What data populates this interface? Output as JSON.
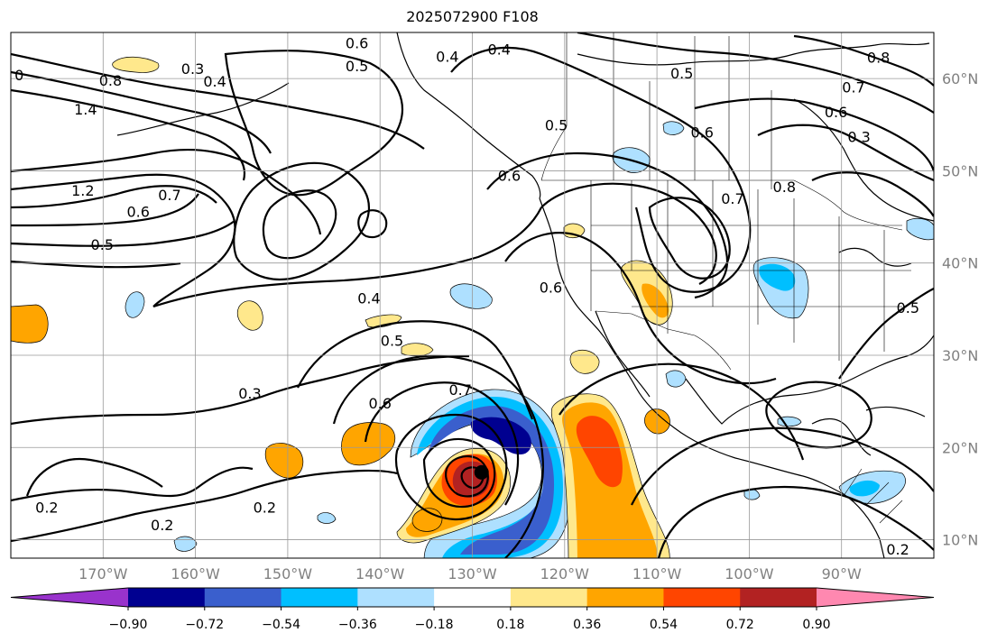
{
  "title": "2025072900 F108",
  "map": {
    "lon_range": [
      -180,
      -80
    ],
    "lat_range": [
      8,
      65
    ],
    "gridlines": true,
    "x_ticks": [
      {
        "lon": -170,
        "label": "170°W"
      },
      {
        "lon": -160,
        "label": "160°W"
      },
      {
        "lon": -150,
        "label": "150°W"
      },
      {
        "lon": -140,
        "label": "140°W"
      },
      {
        "lon": -130,
        "label": "130°W"
      },
      {
        "lon": -120,
        "label": "120°W"
      },
      {
        "lon": -110,
        "label": "110°W"
      },
      {
        "lon": -100,
        "label": "100°W"
      },
      {
        "lon": -90,
        "label": "90°W"
      }
    ],
    "y_ticks": [
      {
        "lat": 60,
        "label": "60°N"
      },
      {
        "lat": 50,
        "label": "50°N"
      },
      {
        "lat": 40,
        "label": "40°N"
      },
      {
        "lat": 30,
        "label": "30°N"
      },
      {
        "lat": 20,
        "label": "20°N"
      },
      {
        "lat": 10,
        "label": "10°N"
      }
    ],
    "contour_labels": [
      {
        "text": "0.6",
        "lon": -142.5,
        "lat": 63.9
      },
      {
        "text": "0.5",
        "lon": -142.5,
        "lat": 61.4
      },
      {
        "text": "0.4",
        "lon": -132.7,
        "lat": 62.4
      },
      {
        "text": "0.3",
        "lon": -160.3,
        "lat": 61.1
      },
      {
        "text": "0.4",
        "lon": -157.9,
        "lat": 59.7
      },
      {
        "text": "0.8",
        "lon": -169.2,
        "lat": 59.8
      },
      {
        "text": "0",
        "lon": -179.1,
        "lat": 60.4
      },
      {
        "text": "1.4",
        "lon": -171.9,
        "lat": 56.7
      },
      {
        "text": "1.2",
        "lon": -172.2,
        "lat": 47.9
      },
      {
        "text": "0.7",
        "lon": -162.8,
        "lat": 47.4
      },
      {
        "text": "0.6",
        "lon": -166.2,
        "lat": 45.6
      },
      {
        "text": "0.5",
        "lon": -170.1,
        "lat": 42.0
      },
      {
        "text": "0.4",
        "lon": -141.2,
        "lat": 36.2
      },
      {
        "text": "0.5",
        "lon": -138.7,
        "lat": 31.6
      },
      {
        "text": "0.7",
        "lon": -131.3,
        "lat": 26.3
      },
      {
        "text": "0.6",
        "lon": -140.0,
        "lat": 24.8
      },
      {
        "text": "0.3",
        "lon": -154.1,
        "lat": 25.9
      },
      {
        "text": "0.2",
        "lon": -176.1,
        "lat": 13.5
      },
      {
        "text": "0.2",
        "lon": -152.5,
        "lat": 13.5
      },
      {
        "text": "0.2",
        "lon": -163.6,
        "lat": 11.6
      },
      {
        "text": "0.4",
        "lon": -127.1,
        "lat": 63.2
      },
      {
        "text": "0.5",
        "lon": -120.9,
        "lat": 55.0
      },
      {
        "text": "0.6",
        "lon": -126.0,
        "lat": 49.5
      },
      {
        "text": "0.6",
        "lon": -105.1,
        "lat": 54.2
      },
      {
        "text": "0.5",
        "lon": -107.3,
        "lat": 60.6
      },
      {
        "text": "0.7",
        "lon": -101.8,
        "lat": 47.0
      },
      {
        "text": "0.8",
        "lon": -96.2,
        "lat": 48.3
      },
      {
        "text": "0.6",
        "lon": -121.5,
        "lat": 37.4
      },
      {
        "text": "0.8",
        "lon": -86.0,
        "lat": 62.3
      },
      {
        "text": "0.7",
        "lon": -88.7,
        "lat": 59.1
      },
      {
        "text": "0.6",
        "lon": -90.6,
        "lat": 56.4
      },
      {
        "text": "0.3",
        "lon": -88.1,
        "lat": 53.7
      },
      {
        "text": "0.5",
        "lon": -82.8,
        "lat": 35.2
      },
      {
        "text": "0.2",
        "lon": -83.9,
        "lat": 9.0
      }
    ]
  },
  "colorbar": {
    "colors": [
      "#9933cc",
      "#000090",
      "#3a5fcd",
      "#00bfff",
      "#aee0ff",
      "#ffffff",
      "#ffe88c",
      "#ffa500",
      "#ff4500",
      "#b22222",
      "#ff88b0"
    ],
    "tick_labels": [
      "−0.90",
      "−0.72",
      "−0.54",
      "−0.36",
      "−0.18",
      "0.18",
      "0.36",
      "0.54",
      "0.72",
      "0.90"
    ],
    "levels": [
      -0.9,
      -0.72,
      -0.54,
      -0.36,
      -0.18,
      0.18,
      0.36,
      0.54,
      0.72,
      0.9
    ]
  },
  "storm_center": {
    "lon": -129,
    "lat": 17.3
  }
}
